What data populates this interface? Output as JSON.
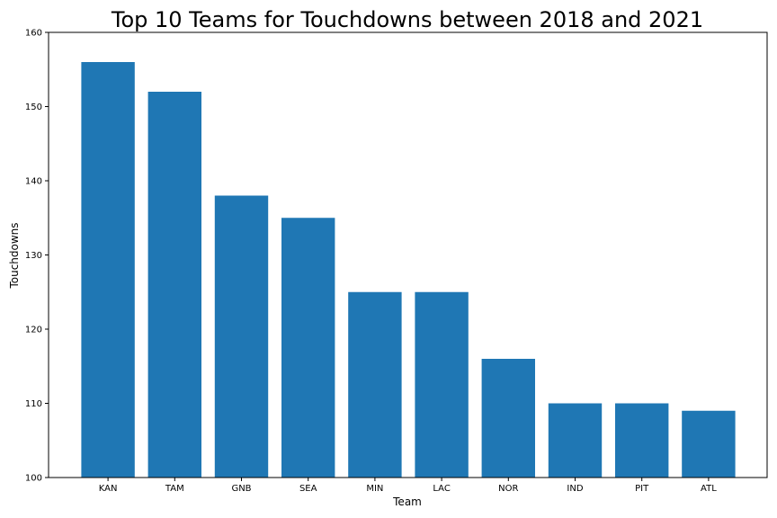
{
  "chart_data": {
    "type": "bar",
    "title": "Top 10 Teams for Touchdowns between 2018 and 2021",
    "xlabel": "Team",
    "ylabel": "Touchdowns",
    "categories": [
      "KAN",
      "TAM",
      "GNB",
      "SEA",
      "MIN",
      "LAC",
      "NOR",
      "IND",
      "PIT",
      "ATL"
    ],
    "values": [
      156,
      152,
      138,
      135,
      125,
      125,
      116,
      110,
      110,
      109
    ],
    "ylim": [
      100,
      160
    ],
    "yticks": [
      "100",
      "110",
      "120",
      "130",
      "140",
      "150",
      "160"
    ],
    "grid": false,
    "legend": "none",
    "colors": {
      "bar": "#1f77b4",
      "axis": "#000000"
    }
  }
}
